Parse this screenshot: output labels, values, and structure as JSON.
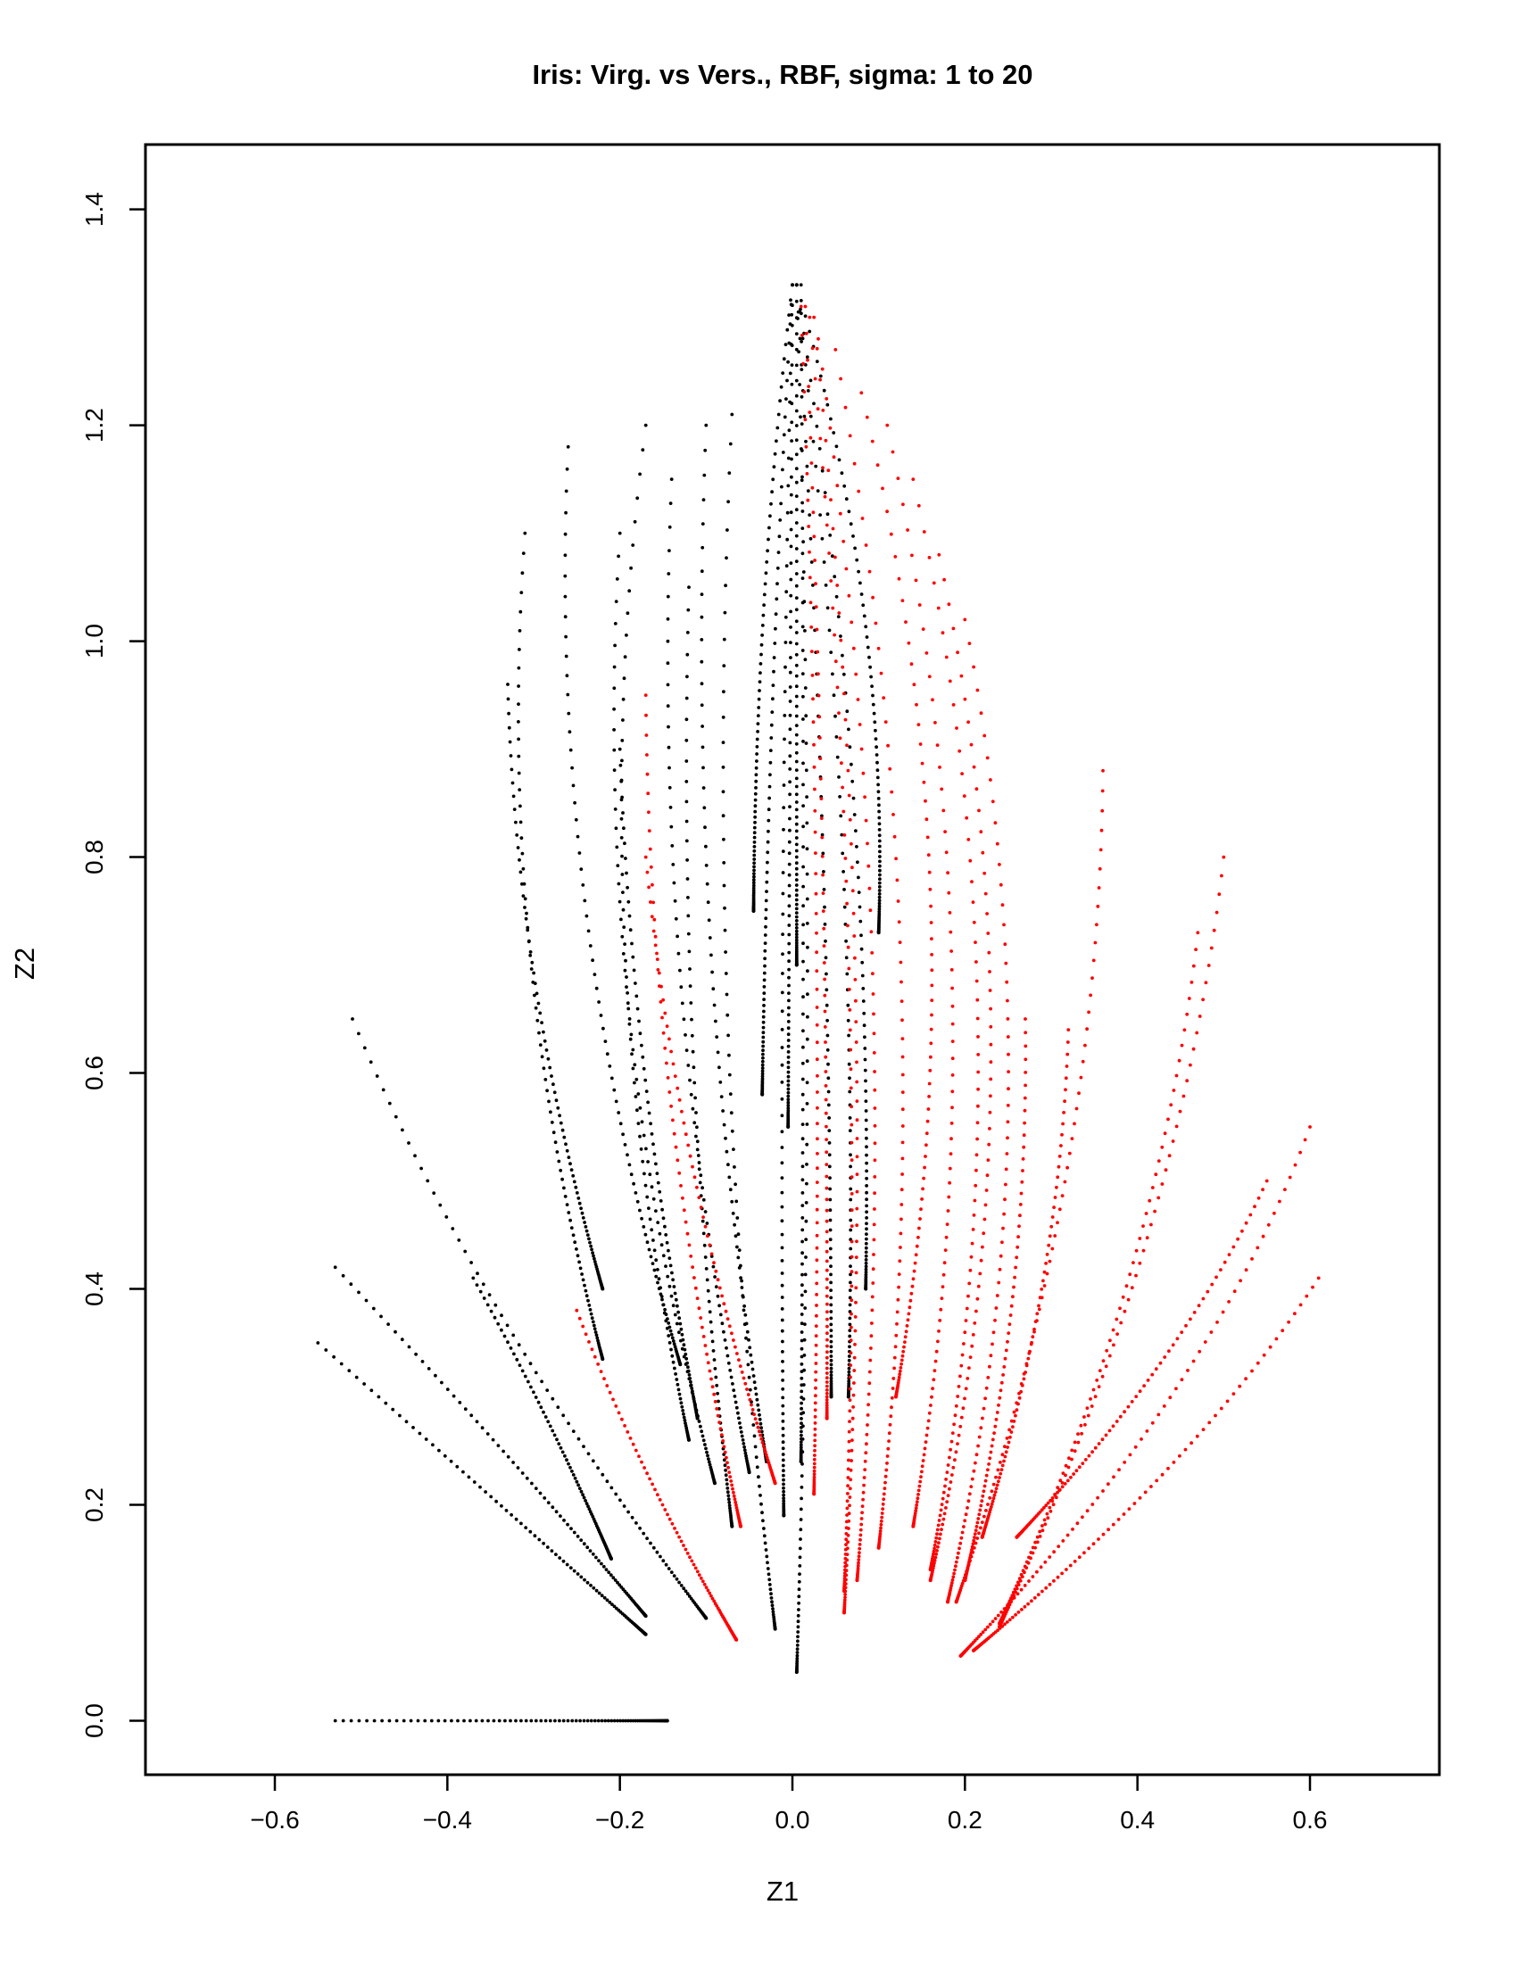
{
  "chart_data": {
    "type": "scatter",
    "title": "Iris: Virg. vs Vers., RBF, sigma: 1 to 20",
    "xlabel": "Z1",
    "ylabel": "Z2",
    "xlim": [
      -0.75,
      0.75
    ],
    "ylim": [
      -0.05,
      1.46
    ],
    "xticks": [
      -0.6,
      -0.4,
      -0.2,
      0.0,
      0.2,
      0.4,
      0.6
    ],
    "xtick_labels": [
      "−0.6",
      "−0.4",
      "−0.2",
      "0.0",
      "0.2",
      "0.4",
      "0.6"
    ],
    "yticks": [
      0.0,
      0.2,
      0.4,
      0.6,
      0.8,
      1.0,
      1.2,
      1.4
    ],
    "ytick_labels": [
      "0.0",
      "0.2",
      "0.4",
      "0.6",
      "0.8",
      "1.0",
      "1.2",
      "1.4"
    ],
    "grid": false,
    "legend": "none",
    "colors": {
      "black_group": "#000000",
      "red_group": "#ff0000"
    },
    "series": [
      {
        "color": "#000000",
        "trajectories": [
          {
            "start": [
              -0.53,
              0.0
            ],
            "end": [
              -0.145,
              0.0
            ],
            "bend": 0.0
          },
          {
            "start": [
              -0.55,
              0.35
            ],
            "end": [
              -0.17,
              0.08
            ],
            "bend": 0.0
          },
          {
            "start": [
              -0.53,
              0.42
            ],
            "end": [
              -0.17,
              0.097
            ],
            "bend": 0.01
          },
          {
            "start": [
              -0.37,
              0.41
            ],
            "end": [
              -0.21,
              0.15
            ],
            "bend": 0.01
          },
          {
            "start": [
              -0.51,
              0.65
            ],
            "end": [
              -0.1,
              0.095
            ],
            "bend": -0.06
          },
          {
            "start": [
              -0.33,
              0.96
            ],
            "end": [
              -0.22,
              0.4
            ],
            "bend": -0.045
          },
          {
            "start": [
              -0.31,
              1.1
            ],
            "end": [
              -0.22,
              0.335
            ],
            "bend": -0.08
          },
          {
            "start": [
              -0.26,
              1.18
            ],
            "end": [
              -0.13,
              0.33
            ],
            "bend": -0.09
          },
          {
            "start": [
              -0.17,
              1.2
            ],
            "end": [
              -0.12,
              0.26
            ],
            "bend": -0.1
          },
          {
            "start": [
              -0.2,
              1.1
            ],
            "end": [
              -0.09,
              0.22
            ],
            "bend": -0.09
          },
          {
            "start": [
              -0.14,
              1.15
            ],
            "end": [
              -0.05,
              0.23
            ],
            "bend": -0.07
          },
          {
            "start": [
              -0.1,
              1.2
            ],
            "end": [
              -0.03,
              0.24
            ],
            "bend": -0.06
          },
          {
            "start": [
              -0.07,
              1.21
            ],
            "end": [
              -0.02,
              0.085
            ],
            "bend": -0.06
          },
          {
            "start": [
              -0.2,
              0.9
            ],
            "end": [
              -0.11,
              0.28
            ],
            "bend": -0.03
          },
          {
            "start": [
              -0.12,
              1.05
            ],
            "end": [
              -0.07,
              0.18
            ],
            "bend": -0.04
          },
          {
            "start": [
              0.0,
              1.33
            ],
            "end": [
              -0.045,
              0.75
            ],
            "bend": -0.02
          },
          {
            "start": [
              0.0,
              1.33
            ],
            "end": [
              -0.035,
              0.58
            ],
            "bend": -0.01
          },
          {
            "start": [
              0.0,
              1.33
            ],
            "end": [
              -0.01,
              0.19
            ],
            "bend": -0.012
          },
          {
            "start": [
              0.0,
              1.33
            ],
            "end": [
              -0.005,
              0.55
            ],
            "bend": 0.0
          },
          {
            "start": [
              0.005,
              1.33
            ],
            "end": [
              0.005,
              0.7
            ],
            "bend": 0.0
          },
          {
            "start": [
              0.01,
              1.33
            ],
            "end": [
              0.01,
              0.24
            ],
            "bend": 0.005
          },
          {
            "start": [
              0.005,
              1.33
            ],
            "end": [
              0.045,
              0.3
            ],
            "bend": 0.02
          },
          {
            "start": [
              0.005,
              1.33
            ],
            "end": [
              0.1,
              0.73
            ],
            "bend": 0.06
          },
          {
            "start": [
              0.005,
              1.33
            ],
            "end": [
              0.065,
              0.3
            ],
            "bend": 0.045
          },
          {
            "start": [
              0.005,
              1.33
            ],
            "end": [
              0.085,
              0.4
            ],
            "bend": 0.05
          },
          {
            "start": [
              0.005,
              1.33
            ],
            "end": [
              0.005,
              0.045
            ],
            "bend": 0.025
          }
        ]
      },
      {
        "color": "#ff0000",
        "trajectories": [
          {
            "start": [
              -0.25,
              0.38
            ],
            "end": [
              -0.065,
              0.075
            ],
            "bend": -0.02
          },
          {
            "start": [
              -0.17,
              0.95
            ],
            "end": [
              -0.06,
              0.18
            ],
            "bend": -0.05
          },
          {
            "start": [
              -0.17,
              0.8
            ],
            "end": [
              -0.02,
              0.22
            ],
            "bend": -0.04
          },
          {
            "start": [
              0.01,
              1.31
            ],
            "end": [
              0.025,
              0.21
            ],
            "bend": 0.02
          },
          {
            "start": [
              0.015,
              1.31
            ],
            "end": [
              0.04,
              0.28
            ],
            "bend": 0.015
          },
          {
            "start": [
              0.02,
              1.3
            ],
            "end": [
              0.06,
              0.12
            ],
            "bend": 0.05
          },
          {
            "start": [
              0.025,
              1.3
            ],
            "end": [
              0.06,
              0.1
            ],
            "bend": 0.06
          },
          {
            "start": [
              0.03,
              1.28
            ],
            "end": [
              0.075,
              0.13
            ],
            "bend": 0.08
          },
          {
            "start": [
              0.05,
              1.27
            ],
            "end": [
              0.1,
              0.16
            ],
            "bend": 0.1
          },
          {
            "start": [
              0.08,
              1.23
            ],
            "end": [
              0.12,
              0.3
            ],
            "bend": 0.12
          },
          {
            "start": [
              0.11,
              1.2
            ],
            "end": [
              0.14,
              0.18
            ],
            "bend": 0.12
          },
          {
            "start": [
              0.14,
              1.15
            ],
            "end": [
              0.16,
              0.14
            ],
            "bend": 0.13
          },
          {
            "start": [
              0.17,
              1.08
            ],
            "end": [
              0.16,
              0.13
            ],
            "bend": 0.13
          },
          {
            "start": [
              0.2,
              1.02
            ],
            "end": [
              0.18,
              0.11
            ],
            "bend": 0.12
          },
          {
            "start": [
              0.36,
              0.88
            ],
            "end": [
              0.19,
              0.11
            ],
            "bend": 0.08
          },
          {
            "start": [
              0.32,
              0.64
            ],
            "end": [
              0.22,
              0.17
            ],
            "bend": 0.04
          },
          {
            "start": [
              0.47,
              0.73
            ],
            "end": [
              0.24,
              0.09
            ],
            "bend": 0.07
          },
          {
            "start": [
              0.5,
              0.8
            ],
            "end": [
              0.24,
              0.087
            ],
            "bend": 0.08
          },
          {
            "start": [
              0.6,
              0.55
            ],
            "end": [
              0.195,
              0.06
            ],
            "bend": 0.09
          },
          {
            "start": [
              0.61,
              0.41
            ],
            "end": [
              0.21,
              0.065
            ],
            "bend": 0.06
          },
          {
            "start": [
              0.55,
              0.5
            ],
            "end": [
              0.26,
              0.17
            ],
            "bend": 0.05
          },
          {
            "start": [
              0.27,
              0.65
            ],
            "end": [
              0.2,
              0.13
            ],
            "bend": 0.04
          }
        ]
      }
    ]
  }
}
